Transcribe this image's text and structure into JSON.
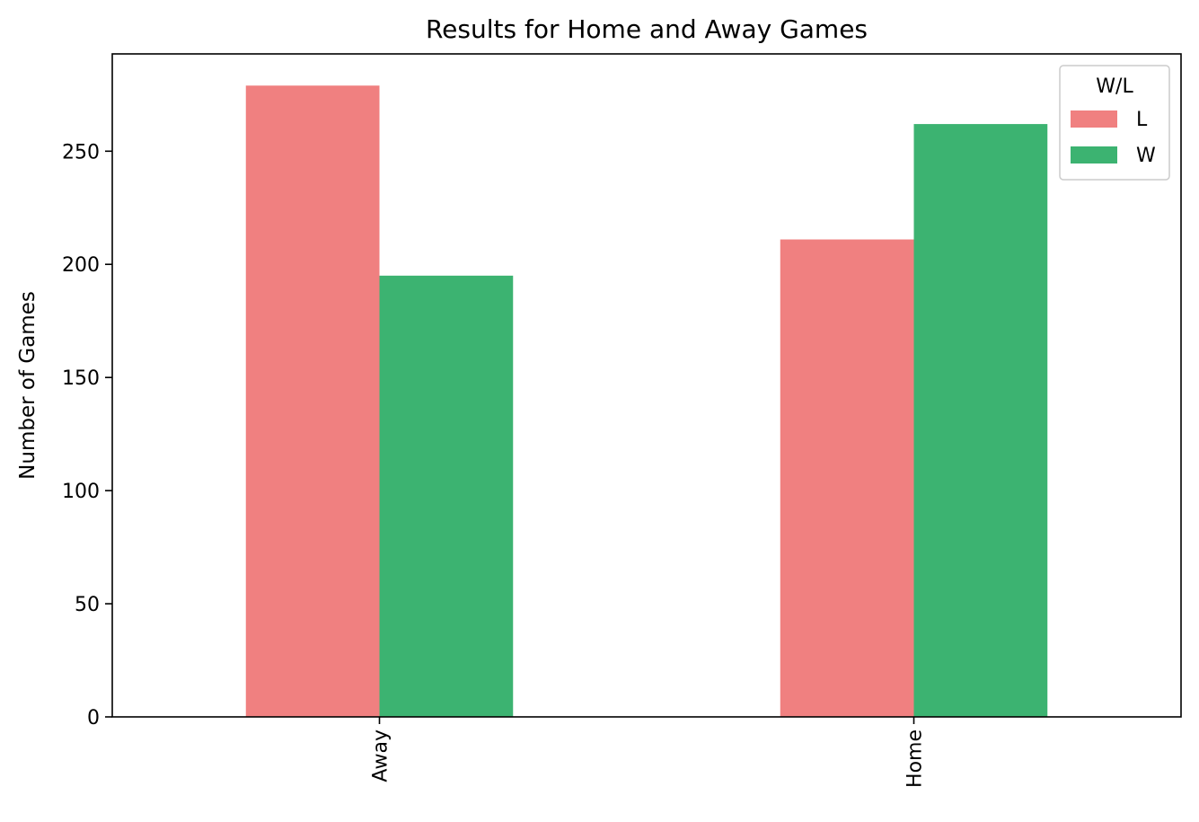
{
  "chart_data": {
    "type": "bar",
    "title": "Results for Home and Away Games",
    "xlabel": "",
    "ylabel": "Number of Games",
    "categories": [
      "Away",
      "Home"
    ],
    "series": [
      {
        "name": "L",
        "color": "#F08080",
        "values": [
          279,
          211
        ]
      },
      {
        "name": "W",
        "color": "#3CB371",
        "values": [
          195,
          262
        ]
      }
    ],
    "ylim": [
      0,
      293
    ],
    "yticks": [
      0,
      50,
      100,
      150,
      200,
      250
    ],
    "legend": {
      "title": "W/L",
      "placement": "top-right"
    },
    "grid": false
  }
}
